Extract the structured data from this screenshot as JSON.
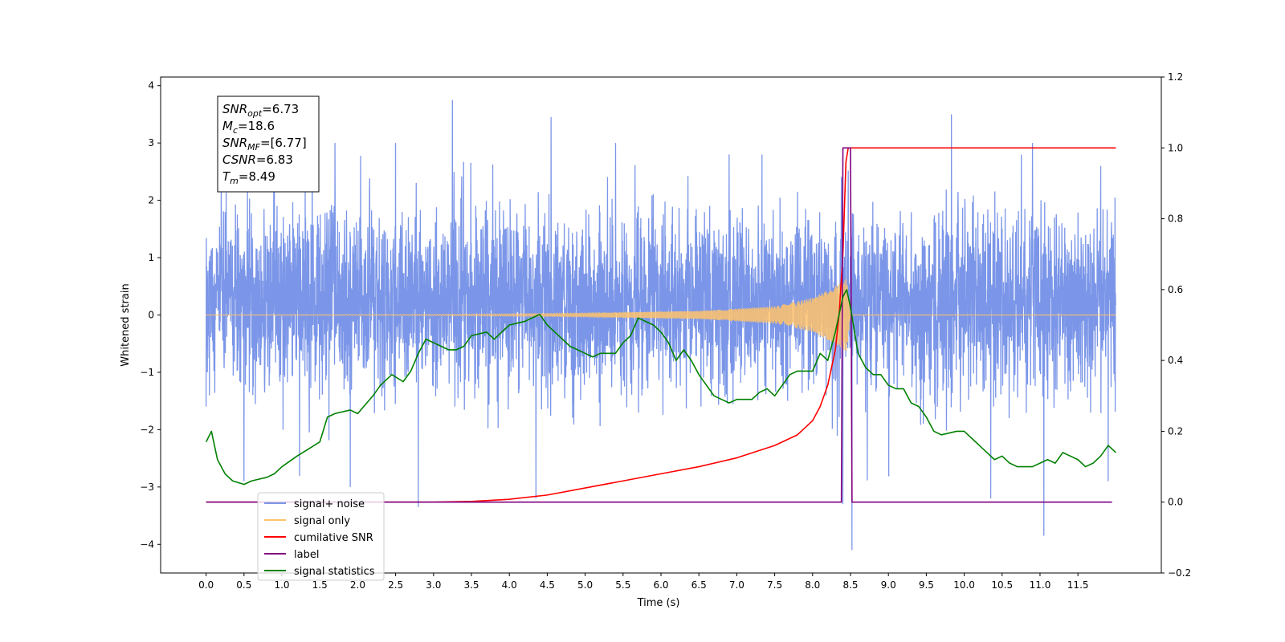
{
  "chart_data": {
    "type": "line",
    "xlabel": "Time (s)",
    "ylabel": "Whitened strain",
    "xlim": [
      -0.6,
      12.6
    ],
    "ylim": [
      -4.5,
      4.15
    ],
    "y2lim": [
      -0.2,
      1.2
    ],
    "x_ticks": [
      "0.0",
      "0.5",
      "1.0",
      "1.5",
      "2.0",
      "2.5",
      "3.0",
      "3.5",
      "4.0",
      "4.5",
      "5.0",
      "5.5",
      "6.0",
      "6.5",
      "7.0",
      "7.5",
      "8.0",
      "8.5",
      "9.0",
      "9.5",
      "10.0",
      "10.5",
      "11.0",
      "11.5"
    ],
    "y_ticks": [
      "4",
      "3",
      "2",
      "1",
      "0",
      "−1",
      "−2",
      "−3",
      "−4"
    ],
    "y2_ticks": [
      "1.2",
      "1.0",
      "0.8",
      "0.6",
      "0.4",
      "0.2",
      "0.0",
      "−0.2"
    ],
    "annotation": {
      "lines": [
        {
          "main": "SNR",
          "sub": "opt",
          "rest": "=6.73"
        },
        {
          "main": "M",
          "sub": "c",
          "rest": "=18.6"
        },
        {
          "main": "SNR",
          "sub": "MF",
          "rest": "=[6.77]"
        },
        {
          "main": "CSNR",
          "sub": "",
          "rest": "=6.83"
        },
        {
          "main": "T",
          "sub": "m",
          "rest": "=8.49"
        }
      ]
    },
    "legend": {
      "placement": "lower-left",
      "entries": [
        {
          "label": "signal+ noise",
          "color": "#7b96e8"
        },
        {
          "label": "signal only",
          "color": "#ffc36b"
        },
        {
          "label": "cumilative SNR",
          "color": "#ff0000"
        },
        {
          "label": "label",
          "color": "#800080"
        },
        {
          "label": "signal statistics",
          "color": "#008000"
        }
      ]
    },
    "series": [
      {
        "name": "signal+ noise",
        "color": "#7b96e8",
        "axis": "left",
        "t_range": [
          0.0,
          12.0
        ],
        "sigma": 0.9,
        "envelope_peaks": [
          {
            "x": 0.0,
            "y": 1.8
          },
          {
            "x": 0.2,
            "y": 2.3
          },
          {
            "x": 0.5,
            "y": 2.2
          },
          {
            "x": 0.9,
            "y": 2.6
          },
          {
            "x": 1.7,
            "y": 3.0
          },
          {
            "x": 2.5,
            "y": 3.0
          },
          {
            "x": 3.25,
            "y": 3.75
          },
          {
            "x": 4.55,
            "y": 3.45
          },
          {
            "x": 5.4,
            "y": 3.0
          },
          {
            "x": 6.9,
            "y": 2.8
          },
          {
            "x": 8.52,
            "y": 3.1
          },
          {
            "x": 9.83,
            "y": 3.5
          },
          {
            "x": 10.9,
            "y": 3.0
          },
          {
            "x": 11.8,
            "y": 2.6
          }
        ],
        "envelope_troughs": [
          {
            "x": 0.0,
            "y": -1.6
          },
          {
            "x": 0.5,
            "y": -2.9
          },
          {
            "x": 1.9,
            "y": -3.0
          },
          {
            "x": 2.8,
            "y": -3.35
          },
          {
            "x": 4.35,
            "y": -3.2
          },
          {
            "x": 8.4,
            "y": -3.3
          },
          {
            "x": 8.52,
            "y": -4.1
          },
          {
            "x": 10.35,
            "y": -3.2
          },
          {
            "x": 11.05,
            "y": -3.85
          },
          {
            "x": 11.9,
            "y": -2.9
          }
        ]
      },
      {
        "name": "signal only",
        "color": "#ffc36b",
        "axis": "left",
        "description_points": [
          {
            "x": 0.0,
            "amp": 0.0
          },
          {
            "x": 3.0,
            "amp": 0.01
          },
          {
            "x": 5.0,
            "amp": 0.03
          },
          {
            "x": 6.5,
            "amp": 0.07
          },
          {
            "x": 7.5,
            "amp": 0.15
          },
          {
            "x": 8.0,
            "amp": 0.3
          },
          {
            "x": 8.3,
            "amp": 0.5
          },
          {
            "x": 8.45,
            "amp": 0.65
          },
          {
            "x": 8.5,
            "amp": 0.0
          },
          {
            "x": 12.0,
            "amp": 0.0
          }
        ]
      },
      {
        "name": "cumilative SNR",
        "color": "#ff0000",
        "axis": "right",
        "points": [
          [
            0.0,
            0.0
          ],
          [
            2.5,
            0.0
          ],
          [
            3.0,
            0.0
          ],
          [
            3.5,
            0.002
          ],
          [
            4.0,
            0.008
          ],
          [
            4.5,
            0.02
          ],
          [
            5.0,
            0.04
          ],
          [
            5.5,
            0.06
          ],
          [
            6.0,
            0.08
          ],
          [
            6.5,
            0.1
          ],
          [
            7.0,
            0.125
          ],
          [
            7.5,
            0.16
          ],
          [
            7.8,
            0.19
          ],
          [
            8.0,
            0.23
          ],
          [
            8.1,
            0.27
          ],
          [
            8.2,
            0.33
          ],
          [
            8.3,
            0.43
          ],
          [
            8.35,
            0.53
          ],
          [
            8.4,
            0.7
          ],
          [
            8.44,
            0.96
          ],
          [
            8.47,
            1.0
          ],
          [
            12.0,
            1.0
          ]
        ]
      },
      {
        "name": "label",
        "color": "#800080",
        "axis": "right",
        "points": [
          [
            0.0,
            0.0
          ],
          [
            8.38,
            0.0
          ],
          [
            8.4,
            1.0
          ],
          [
            8.5,
            1.0
          ],
          [
            8.52,
            0.0
          ],
          [
            11.95,
            0.0
          ]
        ]
      },
      {
        "name": "signal statistics",
        "color": "#008000",
        "axis": "right",
        "points": [
          [
            0.0,
            0.17
          ],
          [
            0.07,
            0.2
          ],
          [
            0.15,
            0.12
          ],
          [
            0.25,
            0.08
          ],
          [
            0.35,
            0.06
          ],
          [
            0.5,
            0.05
          ],
          [
            0.6,
            0.06
          ],
          [
            0.7,
            0.065
          ],
          [
            0.8,
            0.07
          ],
          [
            0.9,
            0.08
          ],
          [
            1.0,
            0.1
          ],
          [
            1.2,
            0.13
          ],
          [
            1.5,
            0.17
          ],
          [
            1.6,
            0.24
          ],
          [
            1.7,
            0.25
          ],
          [
            1.9,
            0.26
          ],
          [
            2.0,
            0.25
          ],
          [
            2.2,
            0.3
          ],
          [
            2.3,
            0.33
          ],
          [
            2.45,
            0.36
          ],
          [
            2.6,
            0.34
          ],
          [
            2.7,
            0.37
          ],
          [
            2.8,
            0.42
          ],
          [
            2.9,
            0.46
          ],
          [
            3.0,
            0.45
          ],
          [
            3.1,
            0.44
          ],
          [
            3.2,
            0.43
          ],
          [
            3.3,
            0.43
          ],
          [
            3.4,
            0.44
          ],
          [
            3.5,
            0.47
          ],
          [
            3.7,
            0.48
          ],
          [
            3.8,
            0.46
          ],
          [
            4.0,
            0.5
          ],
          [
            4.2,
            0.51
          ],
          [
            4.4,
            0.53
          ],
          [
            4.5,
            0.5
          ],
          [
            4.6,
            0.48
          ],
          [
            4.8,
            0.44
          ],
          [
            4.9,
            0.43
          ],
          [
            5.0,
            0.42
          ],
          [
            5.1,
            0.41
          ],
          [
            5.2,
            0.42
          ],
          [
            5.4,
            0.42
          ],
          [
            5.5,
            0.45
          ],
          [
            5.6,
            0.47
          ],
          [
            5.7,
            0.52
          ],
          [
            5.8,
            0.51
          ],
          [
            5.9,
            0.5
          ],
          [
            6.0,
            0.48
          ],
          [
            6.1,
            0.45
          ],
          [
            6.2,
            0.4
          ],
          [
            6.3,
            0.43
          ],
          [
            6.4,
            0.4
          ],
          [
            6.5,
            0.36
          ],
          [
            6.6,
            0.33
          ],
          [
            6.7,
            0.3
          ],
          [
            6.8,
            0.29
          ],
          [
            6.9,
            0.28
          ],
          [
            7.0,
            0.29
          ],
          [
            7.2,
            0.29
          ],
          [
            7.3,
            0.31
          ],
          [
            7.4,
            0.32
          ],
          [
            7.5,
            0.3
          ],
          [
            7.6,
            0.33
          ],
          [
            7.7,
            0.36
          ],
          [
            7.8,
            0.37
          ],
          [
            8.0,
            0.37
          ],
          [
            8.1,
            0.42
          ],
          [
            8.2,
            0.4
          ],
          [
            8.3,
            0.48
          ],
          [
            8.4,
            0.58
          ],
          [
            8.45,
            0.6
          ],
          [
            8.5,
            0.55
          ],
          [
            8.6,
            0.42
          ],
          [
            8.7,
            0.38
          ],
          [
            8.8,
            0.36
          ],
          [
            8.9,
            0.36
          ],
          [
            9.0,
            0.33
          ],
          [
            9.1,
            0.32
          ],
          [
            9.2,
            0.32
          ],
          [
            9.3,
            0.28
          ],
          [
            9.4,
            0.27
          ],
          [
            9.5,
            0.24
          ],
          [
            9.6,
            0.2
          ],
          [
            9.7,
            0.19
          ],
          [
            9.9,
            0.2
          ],
          [
            10.0,
            0.2
          ],
          [
            10.1,
            0.18
          ],
          [
            10.2,
            0.16
          ],
          [
            10.3,
            0.14
          ],
          [
            10.4,
            0.12
          ],
          [
            10.5,
            0.13
          ],
          [
            10.6,
            0.11
          ],
          [
            10.7,
            0.1
          ],
          [
            10.8,
            0.1
          ],
          [
            10.9,
            0.1
          ],
          [
            11.0,
            0.11
          ],
          [
            11.1,
            0.12
          ],
          [
            11.2,
            0.11
          ],
          [
            11.3,
            0.14
          ],
          [
            11.4,
            0.13
          ],
          [
            11.5,
            0.12
          ],
          [
            11.6,
            0.1
          ],
          [
            11.7,
            0.11
          ],
          [
            11.8,
            0.13
          ],
          [
            11.9,
            0.16
          ],
          [
            12.0,
            0.14
          ]
        ]
      }
    ]
  }
}
